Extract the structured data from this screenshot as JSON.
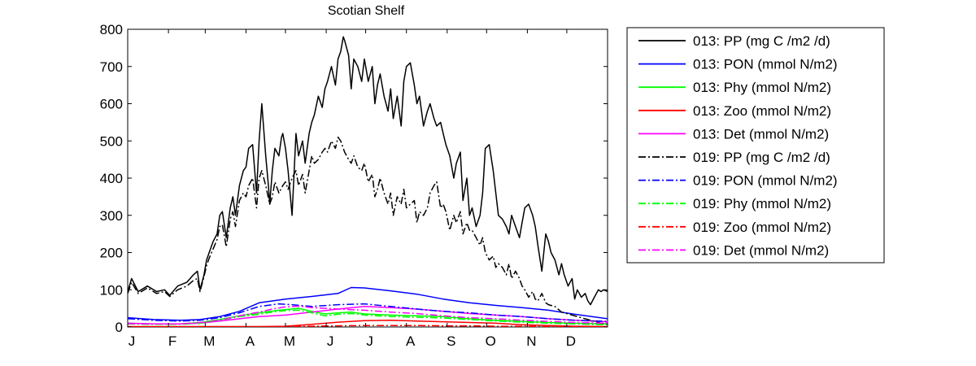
{
  "chart_data": {
    "type": "line",
    "title": "Scotian Shelf",
    "xlabel": "",
    "ylabel": "",
    "xlim": [
      0,
      365
    ],
    "ylim": [
      0,
      800
    ],
    "yticks": [
      0,
      100,
      200,
      300,
      400,
      500,
      600,
      700,
      800
    ],
    "x_tick_labels": [
      "J",
      "F",
      "M",
      "A",
      "M",
      "J",
      "J",
      "A",
      "S",
      "O",
      "N",
      "D"
    ],
    "x_tick_days": [
      0,
      31,
      59,
      90,
      120,
      151,
      181,
      212,
      243,
      273,
      304,
      334
    ],
    "grid": false,
    "legend_position": "outside-right",
    "series": [
      {
        "name": "013: PP (mg C /m2 /d)",
        "color": "#000000",
        "style": "solid",
        "x": [
          0,
          3,
          8,
          15,
          22,
          28,
          32,
          38,
          45,
          50,
          53,
          55,
          58,
          60,
          62,
          65,
          68,
          70,
          72,
          75,
          78,
          80,
          82,
          85,
          88,
          90,
          92,
          95,
          98,
          100,
          102,
          105,
          107,
          108,
          110,
          112,
          115,
          117,
          118,
          120,
          122,
          125,
          128,
          130,
          133,
          135,
          138,
          140,
          142,
          145,
          148,
          150,
          152,
          155,
          158,
          160,
          162,
          164,
          165,
          168,
          170,
          172,
          175,
          178,
          180,
          183,
          186,
          188,
          190,
          192,
          195,
          198,
          200,
          202,
          205,
          208,
          210,
          212,
          215,
          218,
          220,
          222,
          225,
          228,
          230,
          233,
          235,
          238,
          240,
          242,
          245,
          248,
          250,
          253,
          255,
          258,
          260,
          262,
          265,
          268,
          270,
          272,
          275,
          278,
          280,
          282,
          285,
          288,
          290,
          292,
          295,
          298,
          300,
          302,
          305,
          308,
          310,
          312,
          315,
          318,
          320,
          322,
          325,
          328,
          330,
          332,
          335,
          338,
          340,
          342,
          345,
          348,
          350,
          352,
          355,
          358,
          360,
          362,
          365
        ],
        "y": [
          95,
          130,
          95,
          110,
          95,
          100,
          85,
          110,
          120,
          140,
          150,
          100,
          140,
          180,
          200,
          230,
          250,
          300,
          310,
          240,
          320,
          350,
          300,
          380,
          420,
          430,
          480,
          490,
          360,
          500,
          600,
          460,
          380,
          330,
          420,
          480,
          460,
          510,
          520,
          480,
          420,
          300,
          520,
          460,
          500,
          440,
          520,
          550,
          570,
          620,
          590,
          640,
          660,
          700,
          650,
          720,
          740,
          780,
          770,
          730,
          640,
          720,
          700,
          660,
          720,
          660,
          700,
          600,
          650,
          680,
          620,
          580,
          640,
          560,
          620,
          540,
          660,
          700,
          710,
          650,
          600,
          620,
          540,
          580,
          600,
          560,
          540,
          550,
          520,
          490,
          460,
          400,
          440,
          470,
          340,
          400,
          300,
          320,
          270,
          300,
          360,
          480,
          490,
          420,
          360,
          300,
          290,
          270,
          250,
          300,
          270,
          240,
          280,
          320,
          330,
          300,
          270,
          220,
          150,
          250,
          230,
          200,
          180,
          140,
          170,
          140,
          110,
          130,
          75,
          100,
          80,
          90,
          70,
          60,
          80,
          100,
          95,
          100,
          95
        ]
      },
      {
        "name": "013: PON (mmol N/m2)",
        "color": "#0000ff",
        "style": "solid",
        "x": [
          0,
          20,
          40,
          55,
          70,
          85,
          100,
          120,
          140,
          160,
          170,
          180,
          200,
          220,
          240,
          260,
          280,
          300,
          320,
          340,
          365
        ],
        "y": [
          25,
          20,
          18,
          20,
          28,
          42,
          65,
          75,
          82,
          90,
          106,
          105,
          97,
          88,
          75,
          65,
          58,
          52,
          45,
          34,
          22
        ]
      },
      {
        "name": "013: Phy (mmol N/m2)",
        "color": "#00ff00",
        "style": "solid",
        "x": [
          0,
          20,
          40,
          55,
          70,
          85,
          100,
          115,
          130,
          140,
          150,
          160,
          170,
          180,
          200,
          220,
          240,
          260,
          280,
          300,
          320,
          340,
          365
        ],
        "y": [
          10,
          8,
          8,
          12,
          20,
          30,
          38,
          45,
          50,
          42,
          35,
          38,
          40,
          35,
          32,
          30,
          28,
          22,
          18,
          15,
          12,
          10,
          8
        ]
      },
      {
        "name": "013: Zoo (mmol N/m2)",
        "color": "#ff0000",
        "style": "solid",
        "x": [
          0,
          60,
          100,
          120,
          140,
          160,
          180,
          200,
          220,
          240,
          260,
          280,
          300,
          320,
          340,
          365
        ],
        "y": [
          1,
          1,
          1,
          2,
          7,
          13,
          17,
          18,
          16,
          14,
          12,
          10,
          6,
          4,
          2,
          1
        ]
      },
      {
        "name": "013: Det (mmol N/m2)",
        "color": "#ff00ff",
        "style": "solid",
        "x": [
          0,
          20,
          40,
          55,
          70,
          85,
          100,
          120,
          140,
          160,
          180,
          200,
          220,
          240,
          260,
          280,
          300,
          320,
          340,
          365
        ],
        "y": [
          10,
          8,
          8,
          10,
          16,
          22,
          28,
          32,
          40,
          48,
          55,
          52,
          48,
          42,
          36,
          32,
          28,
          22,
          18,
          14
        ]
      },
      {
        "name": "019: PP (mg C /m2 /d)",
        "color": "#000000",
        "style": "dashdot",
        "x": [
          0,
          3,
          8,
          15,
          22,
          28,
          32,
          38,
          45,
          50,
          53,
          55,
          58,
          60,
          62,
          65,
          68,
          70,
          72,
          75,
          78,
          80,
          82,
          85,
          88,
          90,
          92,
          95,
          98,
          100,
          102,
          105,
          108,
          110,
          112,
          115,
          118,
          120,
          122,
          125,
          128,
          130,
          133,
          135,
          138,
          140,
          142,
          145,
          148,
          150,
          152,
          155,
          158,
          160,
          162,
          164,
          165,
          168,
          170,
          172,
          175,
          178,
          180,
          183,
          186,
          188,
          190,
          192,
          195,
          198,
          200,
          202,
          205,
          208,
          210,
          212,
          215,
          218,
          220,
          222,
          225,
          228,
          230,
          233,
          235,
          238,
          240,
          242,
          245,
          248,
          250,
          253,
          255,
          258,
          260,
          262,
          265,
          268,
          270,
          272,
          275,
          278,
          280,
          282,
          285,
          288,
          290,
          292,
          295,
          298,
          300,
          302,
          305,
          308,
          310,
          312,
          315,
          318,
          320,
          325,
          330,
          335,
          340,
          345,
          350,
          355,
          360,
          365
        ],
        "y": [
          90,
          120,
          90,
          105,
          90,
          95,
          82,
          100,
          110,
          125,
          130,
          95,
          135,
          165,
          185,
          210,
          235,
          270,
          275,
          215,
          290,
          310,
          270,
          340,
          360,
          350,
          380,
          400,
          320,
          400,
          420,
          380,
          330,
          350,
          390,
          360,
          380,
          390,
          370,
          400,
          420,
          380,
          410,
          360,
          420,
          460,
          440,
          450,
          470,
          480,
          470,
          500,
          480,
          510,
          500,
          480,
          470,
          450,
          440,
          460,
          430,
          420,
          440,
          390,
          410,
          350,
          370,
          400,
          360,
          330,
          360,
          300,
          350,
          330,
          370,
          320,
          330,
          340,
          280,
          310,
          300,
          320,
          360,
          380,
          390,
          320,
          330,
          310,
          260,
          300,
          280,
          310,
          250,
          280,
          260,
          260,
          240,
          220,
          240,
          200,
          180,
          190,
          160,
          170,
          160,
          140,
          170,
          130,
          150,
          130,
          110,
          100,
          80,
          95,
          75,
          70,
          90,
          65,
          60,
          55,
          40,
          35,
          30,
          25,
          20,
          15,
          10,
          8
        ]
      },
      {
        "name": "019: PON (mmol N/m2)",
        "color": "#0000ff",
        "style": "dashdot",
        "x": [
          0,
          20,
          40,
          55,
          70,
          85,
          100,
          115,
          125,
          140,
          160,
          180,
          200,
          220,
          240,
          260,
          280,
          300,
          320,
          340,
          365
        ],
        "y": [
          22,
          18,
          16,
          18,
          25,
          38,
          55,
          62,
          60,
          55,
          60,
          62,
          55,
          48,
          42,
          38,
          32,
          28,
          22,
          18,
          15
        ]
      },
      {
        "name": "019: Phy (mmol N/m2)",
        "color": "#00ff00",
        "style": "dashdot",
        "x": [
          0,
          20,
          40,
          55,
          70,
          85,
          100,
          110,
          120,
          130,
          140,
          150,
          160,
          170,
          180,
          200,
          220,
          240,
          260,
          280,
          300,
          320,
          340,
          365
        ],
        "y": [
          8,
          7,
          7,
          10,
          18,
          28,
          34,
          40,
          44,
          45,
          38,
          30,
          34,
          36,
          32,
          28,
          26,
          24,
          20,
          16,
          13,
          10,
          8,
          6
        ]
      },
      {
        "name": "019: Zoo (mmol N/m2)",
        "color": "#ff0000",
        "style": "dashdot",
        "x": [
          0,
          60,
          100,
          120,
          140,
          160,
          180,
          200,
          220,
          240,
          260,
          280,
          300,
          320,
          340,
          365
        ],
        "y": [
          0,
          0,
          0,
          1,
          2,
          3,
          4,
          4,
          4,
          3,
          3,
          2,
          2,
          1,
          1,
          0
        ]
      },
      {
        "name": "019: Det (mmol N/m2)",
        "color": "#ff00ff",
        "style": "dashdot",
        "x": [
          0,
          20,
          40,
          55,
          70,
          85,
          100,
          110,
          120,
          130,
          140,
          160,
          180,
          200,
          220,
          240,
          260,
          280,
          300,
          320,
          340,
          365
        ],
        "y": [
          9,
          8,
          8,
          12,
          18,
          30,
          40,
          48,
          54,
          56,
          52,
          48,
          45,
          40,
          36,
          30,
          25,
          22,
          18,
          15,
          12,
          10
        ]
      }
    ]
  }
}
